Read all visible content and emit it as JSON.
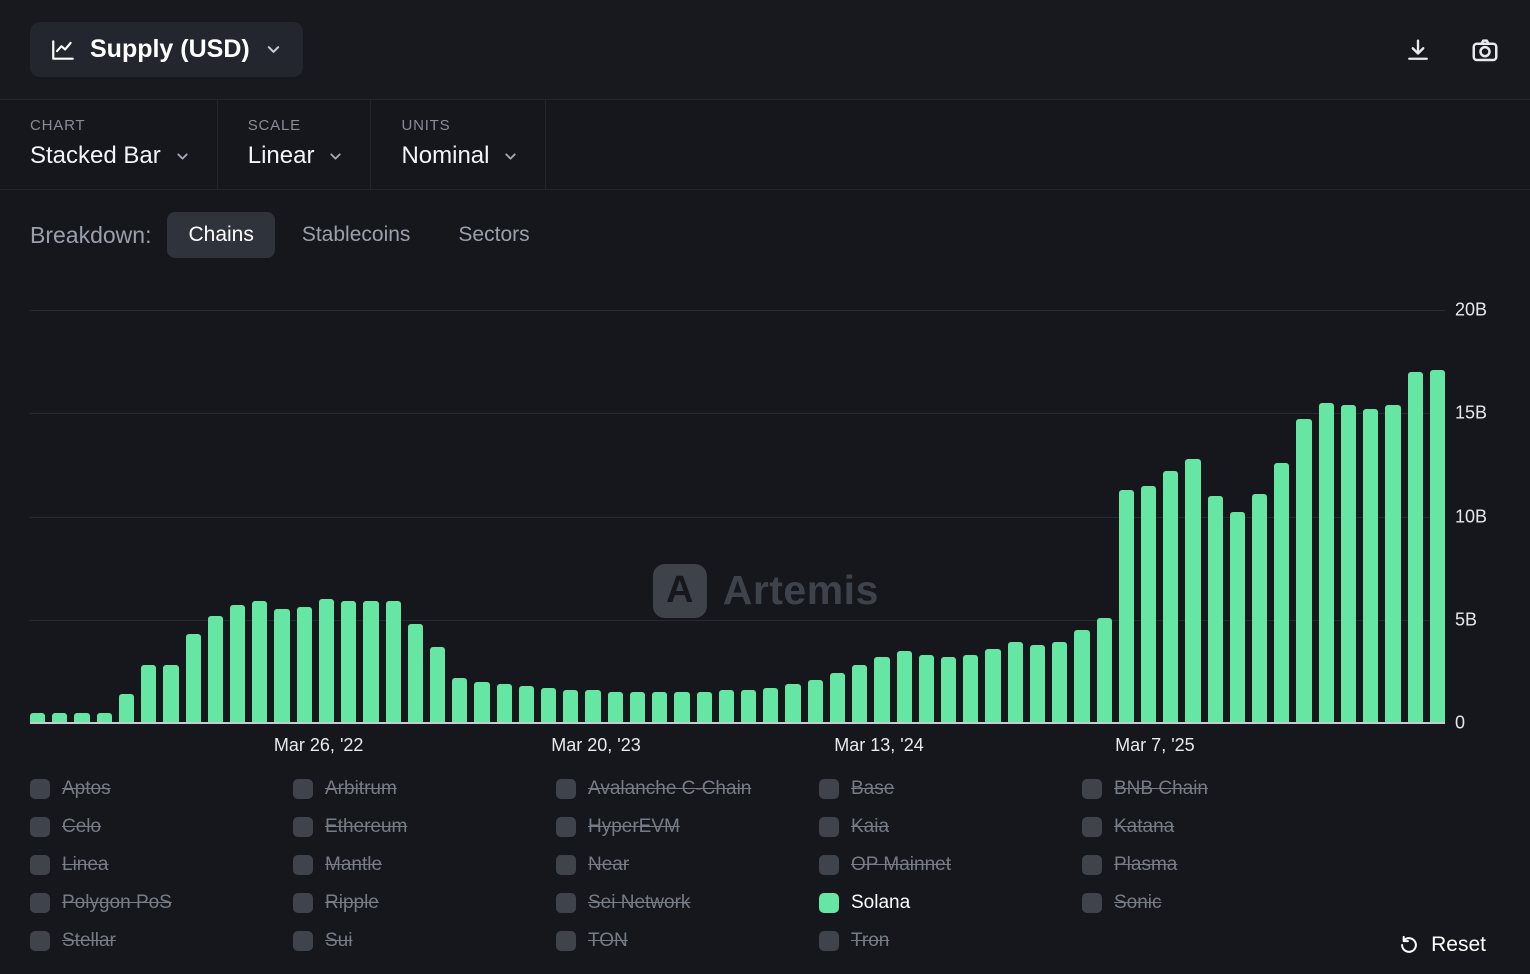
{
  "header": {
    "metric": {
      "label": "Supply (USD)"
    }
  },
  "controls": [
    {
      "label": "CHART",
      "value": "Stacked Bar"
    },
    {
      "label": "SCALE",
      "value": "Linear"
    },
    {
      "label": "UNITS",
      "value": "Nominal"
    }
  ],
  "breakdown": {
    "label": "Breakdown:",
    "tabs": [
      {
        "label": "Chains",
        "selected": true
      },
      {
        "label": "Stablecoins",
        "selected": false
      },
      {
        "label": "Sectors",
        "selected": false
      }
    ]
  },
  "chart_data": {
    "type": "bar",
    "title": "Supply (USD)",
    "unit": "USD billions",
    "ylim": [
      0,
      20
    ],
    "grid": true,
    "legend_position": "bottom",
    "watermark": "Artemis",
    "watermark_logo_letter": "A",
    "y_ticks": [
      {
        "label": "20B",
        "value": 20
      },
      {
        "label": "15B",
        "value": 15
      },
      {
        "label": "10B",
        "value": 10
      },
      {
        "label": "5B",
        "value": 5
      },
      {
        "label": "0",
        "value": 0
      }
    ],
    "x_ticks": [
      {
        "label": "Mar 26, '22",
        "position_pct": 20.4
      },
      {
        "label": "Mar 20, '23",
        "position_pct": 40.0
      },
      {
        "label": "Mar 13, '24",
        "position_pct": 60.0
      },
      {
        "label": "Mar 7, '25",
        "position_pct": 79.5
      }
    ],
    "series": [
      {
        "name": "Solana",
        "color": "#65E6A2",
        "values": [
          0.5,
          0.5,
          0.5,
          0.5,
          1.4,
          2.8,
          2.8,
          4.3,
          5.2,
          5.7,
          5.9,
          5.5,
          5.6,
          6.0,
          5.9,
          5.9,
          5.9,
          4.8,
          3.7,
          2.2,
          2.0,
          1.9,
          1.8,
          1.7,
          1.6,
          1.6,
          1.5,
          1.5,
          1.5,
          1.5,
          1.5,
          1.6,
          1.6,
          1.7,
          1.9,
          2.1,
          2.4,
          2.8,
          3.2,
          3.5,
          3.3,
          3.2,
          3.3,
          3.6,
          3.9,
          3.8,
          3.9,
          4.5,
          5.1,
          11.3,
          11.5,
          12.2,
          12.8,
          11.0,
          10.2,
          11.1,
          12.6,
          14.7,
          15.5,
          15.4,
          15.2,
          15.4,
          17.0,
          17.1
        ]
      }
    ]
  },
  "legend": {
    "items": [
      {
        "label": "Aptos",
        "enabled": false
      },
      {
        "label": "Arbitrum",
        "enabled": false
      },
      {
        "label": "Avalanche C-Chain",
        "enabled": false
      },
      {
        "label": "Base",
        "enabled": false
      },
      {
        "label": "BNB Chain",
        "enabled": false
      },
      {
        "label": "Celo",
        "enabled": false
      },
      {
        "label": "Ethereum",
        "enabled": false
      },
      {
        "label": "HyperEVM",
        "enabled": false
      },
      {
        "label": "Kaia",
        "enabled": false
      },
      {
        "label": "Katana",
        "enabled": false
      },
      {
        "label": "Linea",
        "enabled": false
      },
      {
        "label": "Mantle",
        "enabled": false
      },
      {
        "label": "Near",
        "enabled": false
      },
      {
        "label": "OP Mainnet",
        "enabled": false
      },
      {
        "label": "Plasma",
        "enabled": false
      },
      {
        "label": "Polygon PoS",
        "enabled": false
      },
      {
        "label": "Ripple",
        "enabled": false
      },
      {
        "label": "Sei Network",
        "enabled": false
      },
      {
        "label": "Solana",
        "enabled": true,
        "color": "#65E6A2"
      },
      {
        "label": "Sonic",
        "enabled": false
      },
      {
        "label": "Stellar",
        "enabled": false
      },
      {
        "label": "Sui",
        "enabled": false
      },
      {
        "label": "TON",
        "enabled": false
      },
      {
        "label": "Tron",
        "enabled": false
      }
    ]
  },
  "footer": {
    "reset_label": "Reset"
  }
}
